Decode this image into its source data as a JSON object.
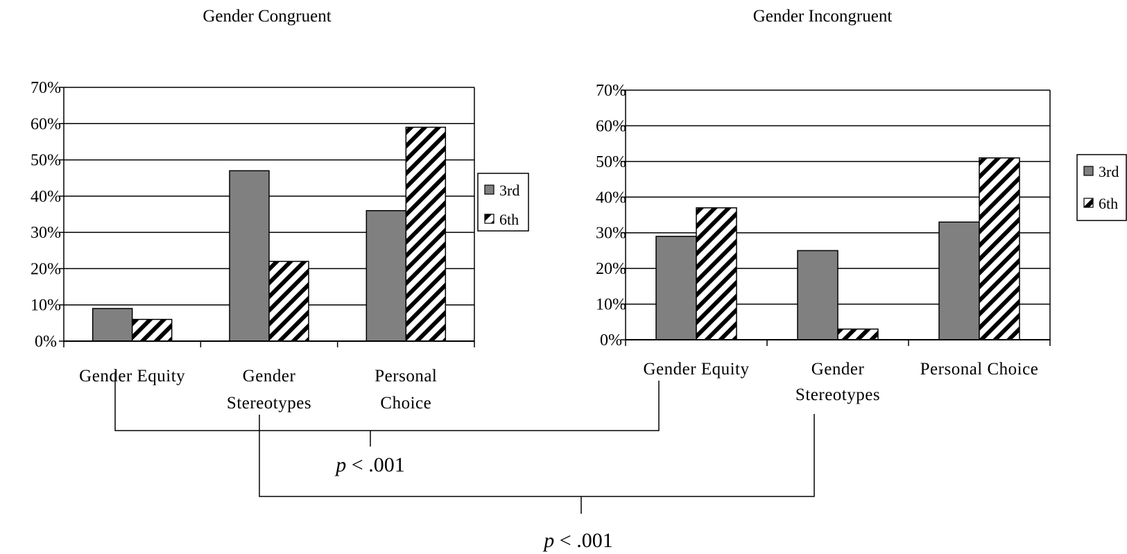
{
  "chart_data": [
    {
      "type": "bar",
      "title": "Gender Congruent",
      "categories": [
        "Gender Equity",
        "Gender Stereotypes",
        "Personal Choice"
      ],
      "category_lines": [
        [
          "Gender Equity"
        ],
        [
          "Gender",
          "Stereotypes"
        ],
        [
          "Personal",
          "Choice"
        ]
      ],
      "series": [
        {
          "name": "3rd",
          "values": [
            9,
            47,
            36
          ],
          "style": "solid gray"
        },
        {
          "name": "6th",
          "values": [
            6,
            22,
            59
          ],
          "style": "diagonal hatch"
        }
      ],
      "ylim": [
        0,
        70
      ],
      "yticks": [
        "0%",
        "10%",
        "20%",
        "30%",
        "40%",
        "50%",
        "60%",
        "70%"
      ],
      "grid": true,
      "legend": "right"
    },
    {
      "type": "bar",
      "title": "Gender Incongruent",
      "categories": [
        "Gender Equity",
        "Gender Stereotypes",
        "Personal Choice"
      ],
      "category_lines": [
        [
          "Gender Equity"
        ],
        [
          "Gender",
          "Stereotypes"
        ],
        [
          "Personal Choice"
        ]
      ],
      "series": [
        {
          "name": "3rd",
          "values": [
            29,
            25,
            33
          ],
          "style": "solid gray"
        },
        {
          "name": "6th",
          "values": [
            37,
            3,
            51
          ],
          "style": "diagonal hatch"
        }
      ],
      "ylim": [
        0,
        70
      ],
      "yticks": [
        "0%",
        "10%",
        "20%",
        "30%",
        "40%",
        "50%",
        "60%",
        "70%"
      ],
      "grid": true,
      "legend": "right"
    }
  ],
  "annotations": {
    "bracket_equity": {
      "p_italic": "p",
      "p_rest": " < .001"
    },
    "bracket_stereotypes": {
      "p_italic": "p",
      "p_rest": " < .001"
    }
  },
  "colors": {
    "bar_3rd": "#808080",
    "bar_6th": "#ffffff",
    "hatch": "#000000",
    "axis": "#000000"
  }
}
